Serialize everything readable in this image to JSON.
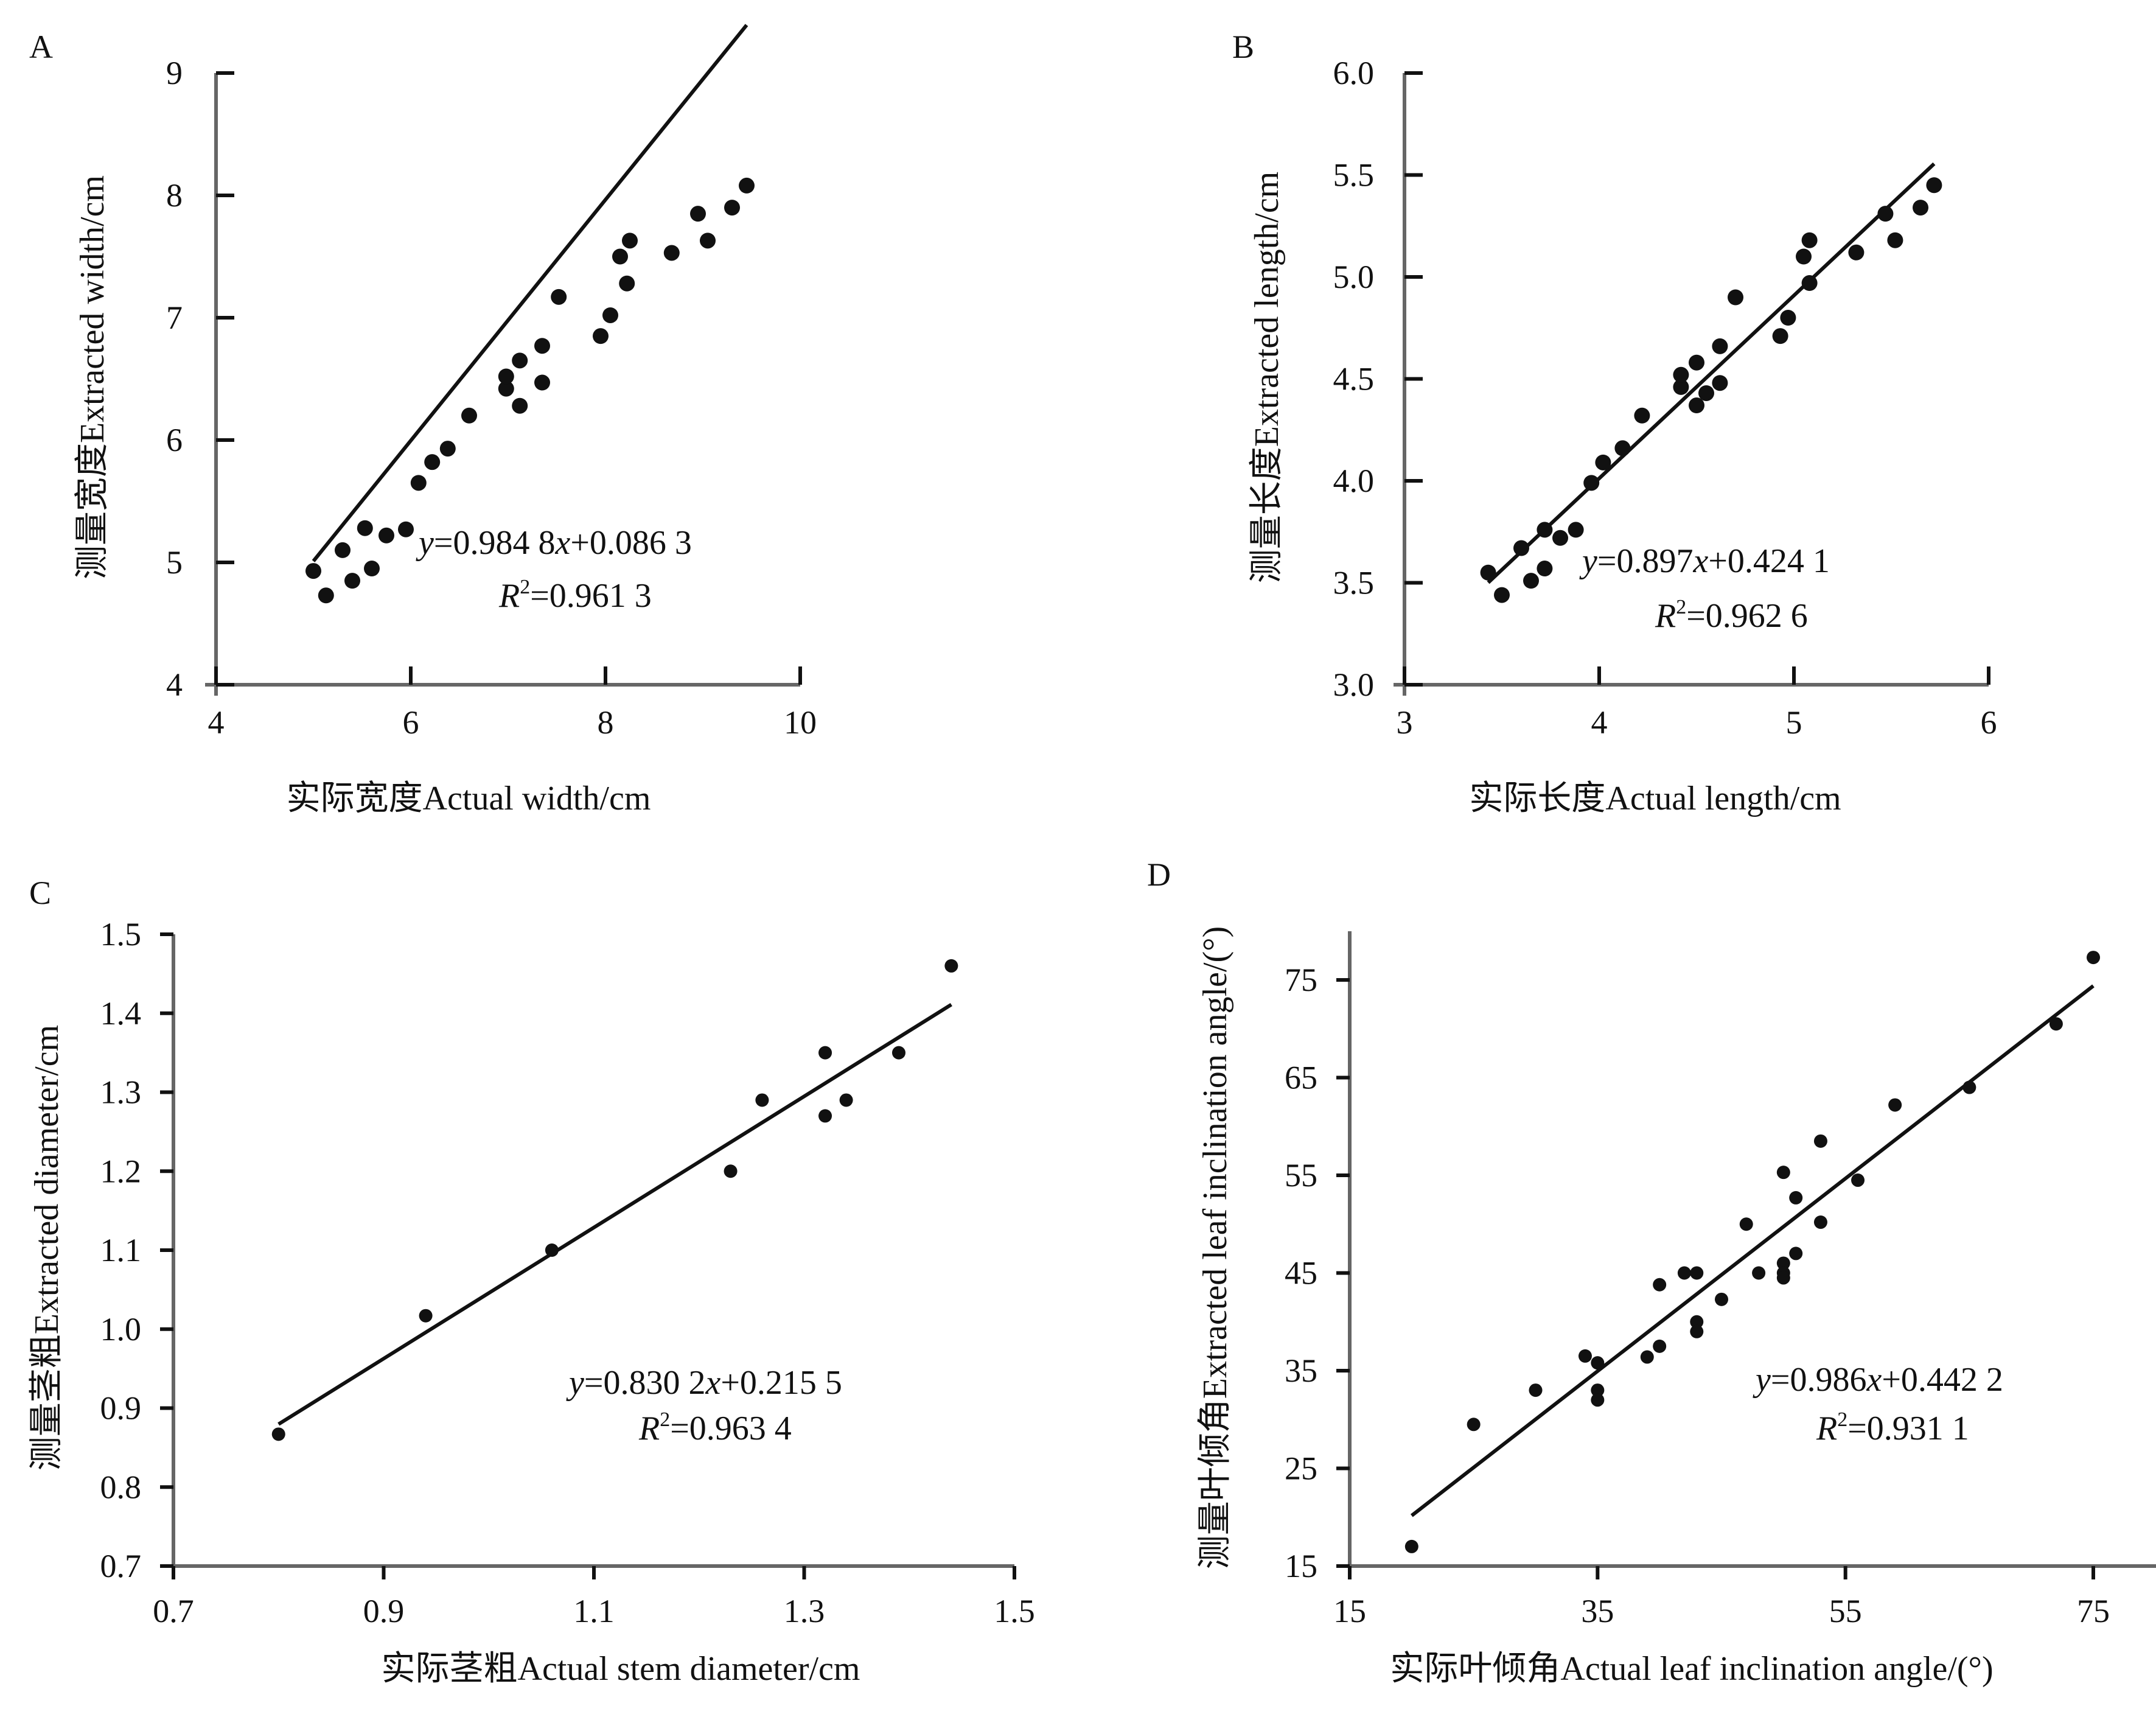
{
  "figure": {
    "panels": [
      {
        "id": "A",
        "chart_data": {
          "type": "scatter",
          "title": "",
          "xlabel": "实际宽度Actual width/cm",
          "ylabel": "测量宽度Extracted width/cm",
          "xlim": [
            4,
            10
          ],
          "ylim": [
            4,
            9
          ],
          "xticks": [
            4,
            6,
            8,
            10
          ],
          "yticks": [
            4,
            5,
            6,
            7,
            8,
            9
          ],
          "tick_labels_x": [
            "4",
            "6",
            "8",
            "10"
          ],
          "tick_labels_y": [
            "4",
            "5",
            "6",
            "7",
            "8",
            "9"
          ],
          "points": [
            [
              5.0,
              4.93
            ],
            [
              5.13,
              4.73
            ],
            [
              5.3,
              5.1
            ],
            [
              5.4,
              4.85
            ],
            [
              5.53,
              5.28
            ],
            [
              5.6,
              4.95
            ],
            [
              5.75,
              5.22
            ],
            [
              5.95,
              5.27
            ],
            [
              6.08,
              5.65
            ],
            [
              6.22,
              5.82
            ],
            [
              6.38,
              5.93
            ],
            [
              6.6,
              6.2
            ],
            [
              6.98,
              6.42
            ],
            [
              6.98,
              6.52
            ],
            [
              7.12,
              6.28
            ],
            [
              7.12,
              6.65
            ],
            [
              7.35,
              6.47
            ],
            [
              7.35,
              6.77
            ],
            [
              7.52,
              7.17
            ],
            [
              7.95,
              6.85
            ],
            [
              8.05,
              7.02
            ],
            [
              8.15,
              7.5
            ],
            [
              8.22,
              7.28
            ],
            [
              8.25,
              7.63
            ],
            [
              8.68,
              7.53
            ],
            [
              8.95,
              7.85
            ],
            [
              9.05,
              7.63
            ],
            [
              9.3,
              7.9
            ],
            [
              9.45,
              8.08
            ]
          ],
          "fit": {
            "slope": 0.9848,
            "intercept": 0.0863,
            "x_range": [
              5.0,
              9.45
            ]
          },
          "equation": {
            "y_var": "y",
            "rhs_before_x": "=0.984 8",
            "x_var": "x",
            "rhs_after_x": "+0.086 3",
            "r2_var": "R",
            "r2_sup": "2",
            "r2_value": "=0.961 3"
          }
        }
      },
      {
        "id": "B",
        "chart_data": {
          "type": "scatter",
          "title": "",
          "xlabel": "实际长度Actual length/cm",
          "ylabel": "测量长度Extracted length/cm",
          "xlim": [
            3,
            6
          ],
          "ylim": [
            3.0,
            6.0
          ],
          "xticks": [
            3,
            4,
            5,
            6
          ],
          "yticks": [
            3.0,
            3.5,
            4.0,
            4.5,
            5.0,
            5.5,
            6.0
          ],
          "tick_labels_x": [
            "3",
            "4",
            "5",
            "6"
          ],
          "tick_labels_y": [
            "3.0",
            "3.5",
            "4.0",
            "4.5",
            "5.0",
            "5.5",
            "6.0"
          ],
          "points": [
            [
              3.43,
              3.55
            ],
            [
              3.5,
              3.44
            ],
            [
              3.6,
              3.67
            ],
            [
              3.65,
              3.51
            ],
            [
              3.72,
              3.76
            ],
            [
              3.72,
              3.57
            ],
            [
              3.8,
              3.72
            ],
            [
              3.88,
              3.76
            ],
            [
              3.96,
              3.99
            ],
            [
              4.02,
              4.09
            ],
            [
              4.12,
              4.16
            ],
            [
              4.22,
              4.32
            ],
            [
              4.42,
              4.46
            ],
            [
              4.42,
              4.52
            ],
            [
              4.5,
              4.37
            ],
            [
              4.5,
              4.58
            ],
            [
              4.55,
              4.43
            ],
            [
              4.62,
              4.48
            ],
            [
              4.62,
              4.66
            ],
            [
              4.7,
              4.9
            ],
            [
              4.93,
              4.71
            ],
            [
              4.97,
              4.8
            ],
            [
              5.05,
              5.1
            ],
            [
              5.08,
              5.18
            ],
            [
              5.08,
              4.97
            ],
            [
              5.32,
              5.12
            ],
            [
              5.47,
              5.31
            ],
            [
              5.52,
              5.18
            ],
            [
              5.65,
              5.34
            ],
            [
              5.72,
              5.45
            ]
          ],
          "fit": {
            "slope": 0.897,
            "intercept": 0.4241,
            "x_range": [
              3.43,
              5.72
            ]
          },
          "equation": {
            "y_var": "y",
            "rhs_before_x": "=0.897",
            "x_var": "x",
            "rhs_after_x": "+0.424 1",
            "r2_var": "R",
            "r2_sup": "2",
            "r2_value": "=0.962 6"
          }
        }
      },
      {
        "id": "C",
        "chart_data": {
          "type": "scatter",
          "title": "",
          "xlabel": "实际茎粗Actual stem diameter/cm",
          "ylabel": "测量茎粗Extracted diameter/cm",
          "xlim": [
            0.7,
            1.5
          ],
          "ylim": [
            0.7,
            1.5
          ],
          "xticks": [
            0.7,
            0.9,
            1.1,
            1.3,
            1.5
          ],
          "yticks": [
            0.7,
            0.8,
            0.9,
            1.0,
            1.1,
            1.2,
            1.3,
            1.4,
            1.5
          ],
          "tick_labels_x": [
            "0.7",
            "0.9",
            "1.1",
            "1.3",
            "1.5"
          ],
          "tick_labels_y": [
            "0.7",
            "0.8",
            "0.9",
            "1.0",
            "1.1",
            "1.2",
            "1.3",
            "1.4",
            "1.5"
          ],
          "points": [
            [
              0.8,
              0.867
            ],
            [
              0.94,
              1.017
            ],
            [
              1.06,
              1.1
            ],
            [
              1.23,
              1.2
            ],
            [
              1.26,
              1.29
            ],
            [
              1.32,
              1.35
            ],
            [
              1.32,
              1.27
            ],
            [
              1.34,
              1.29
            ],
            [
              1.39,
              1.35
            ],
            [
              1.44,
              1.46
            ]
          ],
          "fit": {
            "slope": 0.8302,
            "intercept": 0.2155,
            "x_range": [
              0.8,
              1.44
            ]
          },
          "equation": {
            "y_var": "y",
            "rhs_before_x": "=0.830 2",
            "x_var": "x",
            "rhs_after_x": "+0.215 5",
            "r2_var": "R",
            "r2_sup": "2",
            "r2_value": "=0.963 4"
          }
        }
      },
      {
        "id": "D",
        "chart_data": {
          "type": "scatter",
          "title": "",
          "xlabel": "实际叶倾角Actual leaf inclination angle/(°)",
          "ylabel": "测量叶倾角Extracted leaf inclination angle/(°)",
          "xlim": [
            15,
            80
          ],
          "ylim": [
            15,
            80
          ],
          "xticks": [
            15,
            35,
            55,
            75
          ],
          "yticks": [
            15,
            25,
            35,
            45,
            55,
            65,
            75
          ],
          "tick_labels_x": [
            "15",
            "35",
            "55",
            "75"
          ],
          "tick_labels_y": [
            "15",
            "25",
            "35",
            "45",
            "55",
            "65",
            "75"
          ],
          "points": [
            [
              20,
              17
            ],
            [
              25,
              29.5
            ],
            [
              30,
              33
            ],
            [
              34,
              36.5
            ],
            [
              35,
              35.8
            ],
            [
              35,
              33
            ],
            [
              35,
              32
            ],
            [
              39,
              36.4
            ],
            [
              40,
              37.5
            ],
            [
              40,
              43.8
            ],
            [
              42,
              45
            ],
            [
              43,
              45
            ],
            [
              43,
              40
            ],
            [
              43,
              39
            ],
            [
              45,
              42.3
            ],
            [
              47,
              50
            ],
            [
              48,
              45
            ],
            [
              50,
              55.3
            ],
            [
              50,
              46
            ],
            [
              50,
              45
            ],
            [
              50,
              44.5
            ],
            [
              51,
              52.7
            ],
            [
              51,
              47
            ],
            [
              53,
              58.5
            ],
            [
              53,
              50.2
            ],
            [
              56,
              54.5
            ],
            [
              59,
              62.2
            ],
            [
              65,
              64
            ],
            [
              72,
              70.5
            ],
            [
              75,
              77.3
            ]
          ],
          "fit": {
            "slope": 0.986,
            "intercept": 0.4422,
            "x_range": [
              20,
              75
            ]
          },
          "equation": {
            "y_var": "y",
            "rhs_before_x": "=0.986",
            "x_var": "x",
            "rhs_after_x": "+0.442 2",
            "r2_var": "R",
            "r2_sup": "2",
            "r2_value": "=0.931 1"
          }
        }
      }
    ]
  }
}
